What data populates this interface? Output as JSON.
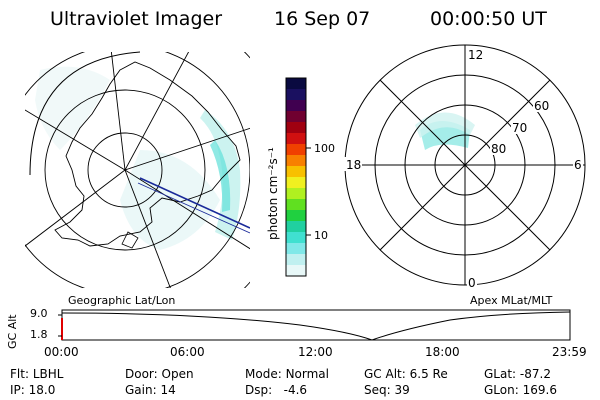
{
  "header": {
    "instrument": "Ultraviolet Imager",
    "date": "16 Sep 07",
    "time": "00:00:50 UT"
  },
  "left_panel": {
    "label": "Geographic Lat/Lon"
  },
  "right_panel": {
    "label": "Apex MLat/MLT",
    "mlt_labels": {
      "top": "12",
      "left": "18",
      "right": "6",
      "bottom": "0"
    },
    "mlat_labels": [
      "60",
      "70",
      "80"
    ]
  },
  "colorbar": {
    "unit": "photon cm⁻²s⁻¹",
    "ticks": [
      "100",
      "10"
    ],
    "colors": [
      "#0a0a40",
      "#1a1060",
      "#400050",
      "#700030",
      "#a00010",
      "#d01010",
      "#f04000",
      "#f88000",
      "#f8c000",
      "#f0f020",
      "#b0f020",
      "#60e020",
      "#20d040",
      "#20d0a0",
      "#40e0d0",
      "#80e8e8",
      "#c0f0f0",
      "#e8f8f8"
    ]
  },
  "altitude_strip": {
    "axis_label": "GC Alt",
    "ymax": "9.0",
    "ymin": "1.8",
    "time_ticks": [
      "00:00",
      "06:00",
      "12:00",
      "18:00",
      "23:59"
    ]
  },
  "status": {
    "filter_label": "Flt:",
    "filter_value": "LBHL",
    "door_label": "Door:",
    "door_value": "Open",
    "mode_label": "Mode:",
    "mode_value": "Normal",
    "gcalt_label": "GC Alt:",
    "gcalt_value": "6.5 Re",
    "glat_label": "GLat:",
    "glat_value": "-87.2",
    "ip_label": "IP:",
    "ip_value": "18.0",
    "gain_label": "Gain:",
    "gain_value": "14",
    "dsp_label": "Dsp:",
    "dsp_value": "-4.6",
    "seq_label": "Seq:",
    "seq_value": "39",
    "glon_label": "GLon:",
    "glon_value": "169.6"
  }
}
